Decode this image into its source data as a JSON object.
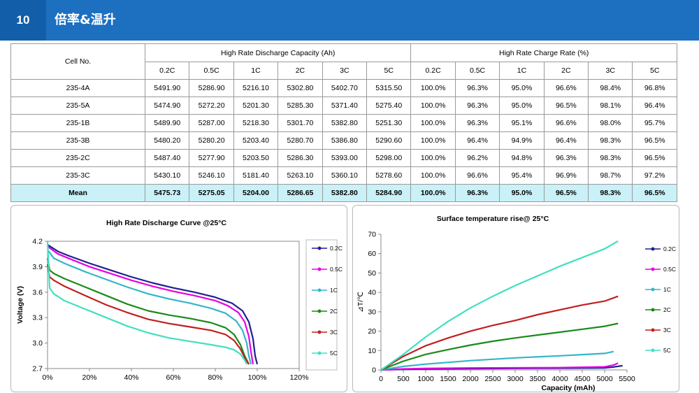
{
  "header": {
    "number": "10",
    "title": "倍率&温升"
  },
  "table": {
    "cell_col": "Cell No.",
    "group1": "High Rate Discharge Capacity (Ah)",
    "group2": "High Rate Charge Rate (%)",
    "rates": [
      "0.2C",
      "0.5C",
      "1C",
      "2C",
      "3C",
      "5C"
    ],
    "rows": [
      {
        "id": "235-4A",
        "cap": [
          "5491.90",
          "5286.90",
          "5216.10",
          "5302.80",
          "5402.70",
          "5315.50"
        ],
        "pct": [
          "100.0%",
          "96.3%",
          "95.0%",
          "96.6%",
          "98.4%",
          "96.8%"
        ]
      },
      {
        "id": "235-5A",
        "cap": [
          "5474.90",
          "5272.20",
          "5201.30",
          "5285.30",
          "5371.40",
          "5275.40"
        ],
        "pct": [
          "100.0%",
          "96.3%",
          "95.0%",
          "96.5%",
          "98.1%",
          "96.4%"
        ]
      },
      {
        "id": "235-1B",
        "cap": [
          "5489.90",
          "5287.00",
          "5218.30",
          "5301.70",
          "5382.80",
          "5251.30"
        ],
        "pct": [
          "100.0%",
          "96.3%",
          "95.1%",
          "96.6%",
          "98.0%",
          "95.7%"
        ]
      },
      {
        "id": "235-3B",
        "cap": [
          "5480.20",
          "5280.20",
          "5203.40",
          "5280.70",
          "5386.80",
          "5290.60"
        ],
        "pct": [
          "100.0%",
          "96.4%",
          "94.9%",
          "96.4%",
          "98.3%",
          "96.5%"
        ]
      },
      {
        "id": "235-2C",
        "cap": [
          "5487.40",
          "5277.90",
          "5203.50",
          "5286.30",
          "5393.00",
          "5298.00"
        ],
        "pct": [
          "100.0%",
          "96.2%",
          "94.8%",
          "96.3%",
          "98.3%",
          "96.5%"
        ]
      },
      {
        "id": "235-3C",
        "cap": [
          "5430.10",
          "5246.10",
          "5181.40",
          "5263.10",
          "5360.10",
          "5278.60"
        ],
        "pct": [
          "100.0%",
          "96.6%",
          "95.4%",
          "96.9%",
          "98.7%",
          "97.2%"
        ]
      }
    ],
    "mean": {
      "id": "Mean",
      "cap": [
        "5475.73",
        "5275.05",
        "5204.00",
        "5286.65",
        "5382.80",
        "5284.90"
      ],
      "pct": [
        "100.0%",
        "96.3%",
        "95.0%",
        "96.5%",
        "98.3%",
        "96.5%"
      ]
    }
  },
  "chart_data": [
    {
      "type": "line",
      "title": "High Rate Discharge Curve  @25°C",
      "xlabel": "",
      "ylabel": "Voltage (V)",
      "xlim": [
        0,
        120
      ],
      "ylim": [
        2.7,
        4.2
      ],
      "xticks": [
        "0%",
        "20%",
        "40%",
        "60%",
        "80%",
        "100%",
        "120%"
      ],
      "yticks": [
        "2.7",
        "3.0",
        "3.3",
        "3.6",
        "3.9",
        "4.2"
      ],
      "legend_position": "right",
      "series": [
        {
          "name": "0.2C",
          "color": "#1f1f8f",
          "x": [
            0,
            5,
            10,
            20,
            30,
            40,
            50,
            60,
            70,
            80,
            88,
            93,
            96,
            98,
            99,
            100
          ],
          "y": [
            4.16,
            4.08,
            4.03,
            3.94,
            3.86,
            3.78,
            3.71,
            3.65,
            3.6,
            3.54,
            3.47,
            3.38,
            3.25,
            3.05,
            2.85,
            2.75
          ]
        },
        {
          "name": "0.5C",
          "color": "#e600e6",
          "x": [
            0,
            5,
            10,
            20,
            30,
            40,
            50,
            60,
            70,
            80,
            86,
            91,
            94,
            96,
            97,
            98
          ],
          "y": [
            4.14,
            4.05,
            4.0,
            3.9,
            3.82,
            3.74,
            3.67,
            3.61,
            3.56,
            3.5,
            3.44,
            3.36,
            3.25,
            3.08,
            2.9,
            2.75
          ]
        },
        {
          "name": "1C",
          "color": "#35b5c9",
          "x": [
            0,
            3,
            8,
            18,
            28,
            38,
            48,
            58,
            68,
            78,
            85,
            90,
            93,
            95,
            96,
            97
          ],
          "y": [
            4.1,
            4.0,
            3.94,
            3.84,
            3.75,
            3.66,
            3.58,
            3.52,
            3.47,
            3.41,
            3.35,
            3.26,
            3.15,
            3.0,
            2.85,
            2.75
          ]
        },
        {
          "name": "2C",
          "color": "#1a8a1a",
          "x": [
            0,
            1,
            3,
            8,
            18,
            28,
            38,
            48,
            58,
            68,
            78,
            85,
            89,
            92,
            94,
            96
          ],
          "y": [
            4.0,
            3.86,
            3.82,
            3.76,
            3.66,
            3.56,
            3.46,
            3.38,
            3.33,
            3.29,
            3.24,
            3.18,
            3.1,
            2.98,
            2.85,
            2.75
          ]
        },
        {
          "name": "3C",
          "color": "#c0201f",
          "x": [
            0,
            1,
            3,
            8,
            18,
            28,
            38,
            48,
            58,
            68,
            78,
            85,
            89,
            92,
            94,
            96
          ],
          "y": [
            3.93,
            3.78,
            3.74,
            3.67,
            3.56,
            3.45,
            3.36,
            3.28,
            3.23,
            3.19,
            3.15,
            3.1,
            3.03,
            2.93,
            2.83,
            2.75
          ]
        },
        {
          "name": "5C",
          "color": "#40e0c0",
          "x": [
            0,
            1,
            3,
            8,
            18,
            28,
            38,
            48,
            58,
            68,
            78,
            85,
            89,
            92,
            94,
            95
          ],
          "y": [
            4.2,
            3.65,
            3.58,
            3.5,
            3.4,
            3.3,
            3.2,
            3.12,
            3.06,
            3.02,
            2.98,
            2.95,
            2.92,
            2.87,
            2.8,
            2.75
          ]
        }
      ]
    },
    {
      "type": "line",
      "title": "Surface temperature rise@ 25°C",
      "xlabel": "Capacity (mAh)",
      "ylabel": "⊿T/℃",
      "xlim": [
        0,
        5500
      ],
      "ylim": [
        0,
        70
      ],
      "xticks": [
        "0",
        "500",
        "1000",
        "1500",
        "2000",
        "2500",
        "3000",
        "3500",
        "4000",
        "4500",
        "5000",
        "5500"
      ],
      "yticks": [
        "0",
        "10",
        "20",
        "30",
        "40",
        "50",
        "60",
        "70"
      ],
      "legend_position": "right",
      "series": [
        {
          "name": "0.2C",
          "color": "#1f1f8f",
          "x": [
            0,
            500,
            1000,
            2000,
            3000,
            4000,
            5000,
            5200,
            5400
          ],
          "y": [
            0,
            0.3,
            0.5,
            0.7,
            0.8,
            0.9,
            1.0,
            1.5,
            2.2
          ]
        },
        {
          "name": "0.5C",
          "color": "#e600e6",
          "x": [
            0,
            500,
            1000,
            2000,
            3000,
            4000,
            5000,
            5200,
            5300
          ],
          "y": [
            0,
            0.5,
            0.8,
            1.0,
            1.1,
            1.2,
            1.6,
            2.5,
            3.5
          ]
        },
        {
          "name": "1C",
          "color": "#35b5c9",
          "x": [
            0,
            500,
            1000,
            2000,
            3000,
            4000,
            5000,
            5200
          ],
          "y": [
            0,
            1.8,
            3.0,
            4.8,
            6.2,
            7.3,
            8.5,
            9.5
          ]
        },
        {
          "name": "2C",
          "color": "#1a8a1a",
          "x": [
            0,
            500,
            1000,
            1500,
            2000,
            2500,
            3000,
            3500,
            4000,
            4500,
            5000,
            5300
          ],
          "y": [
            0,
            4.5,
            8.0,
            10.5,
            12.8,
            14.8,
            16.5,
            18.0,
            19.5,
            21.0,
            22.5,
            24.0
          ]
        },
        {
          "name": "3C",
          "color": "#c0201f",
          "x": [
            0,
            500,
            1000,
            1500,
            2000,
            2500,
            3000,
            3500,
            4000,
            4500,
            5000,
            5300
          ],
          "y": [
            0,
            7.0,
            12.5,
            16.5,
            20.0,
            23.0,
            25.5,
            28.5,
            31.0,
            33.5,
            35.5,
            38.0
          ]
        },
        {
          "name": "5C",
          "color": "#40e0c0",
          "x": [
            0,
            500,
            1000,
            1500,
            2000,
            2500,
            3000,
            3500,
            4000,
            4500,
            5000,
            5300
          ],
          "y": [
            0,
            8.0,
            17.0,
            25.0,
            32.0,
            38.0,
            43.5,
            48.5,
            53.5,
            58.0,
            62.5,
            66.5
          ]
        }
      ]
    }
  ]
}
